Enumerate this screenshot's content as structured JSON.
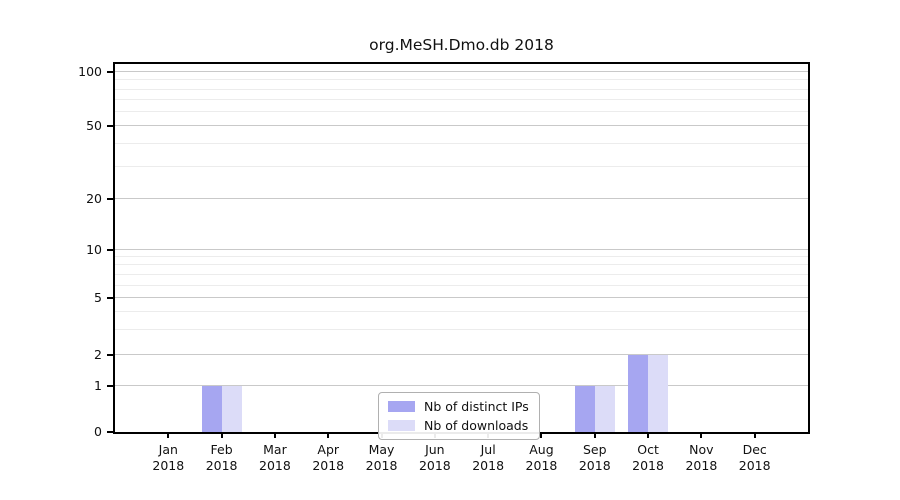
{
  "title": "org.MeSH.Dmo.db 2018",
  "colors": {
    "bar_distinct_ips": "#a6a6f1",
    "bar_downloads": "#dcdcf8",
    "grid_major": "#c9c9c9",
    "grid_minor": "#ececec",
    "spine": "#000000",
    "background": "#ffffff",
    "legend_border": "#b0b0b0"
  },
  "legend": {
    "items": [
      {
        "label": "Nb of distinct IPs",
        "color": "#a6a6f1"
      },
      {
        "label": "Nb of downloads",
        "color": "#dcdcf8"
      }
    ]
  },
  "chart_data": {
    "type": "bar",
    "title": "org.MeSH.Dmo.db 2018",
    "categories": [
      "Jan 2018",
      "Feb 2018",
      "Mar 2018",
      "Apr 2018",
      "May 2018",
      "Jun 2018",
      "Jul 2018",
      "Aug 2018",
      "Sep 2018",
      "Oct 2018",
      "Nov 2018",
      "Dec 2018"
    ],
    "series": [
      {
        "name": "Nb of distinct IPs",
        "color": "#a6a6f1",
        "values": [
          0,
          1,
          0,
          0,
          0,
          0,
          0,
          0,
          1,
          2,
          0,
          0
        ]
      },
      {
        "name": "Nb of downloads",
        "color": "#dcdcf8",
        "values": [
          0,
          1,
          0,
          0,
          0,
          0,
          0,
          0,
          1,
          2,
          0,
          0
        ]
      }
    ],
    "yticks": [
      0,
      1,
      2,
      5,
      10,
      20,
      50,
      100
    ],
    "yticks_minor": [
      3,
      4,
      6,
      7,
      8,
      9,
      30,
      40,
      60,
      70,
      80,
      90
    ],
    "ylim": [
      0,
      110
    ],
    "xlabel": "",
    "ylabel": "",
    "grid": "horizontal major+minor",
    "legend_position": "inside lower-center",
    "scale_note": "quasi-log y axis (0,1,2,5,10,20,50,100)"
  }
}
